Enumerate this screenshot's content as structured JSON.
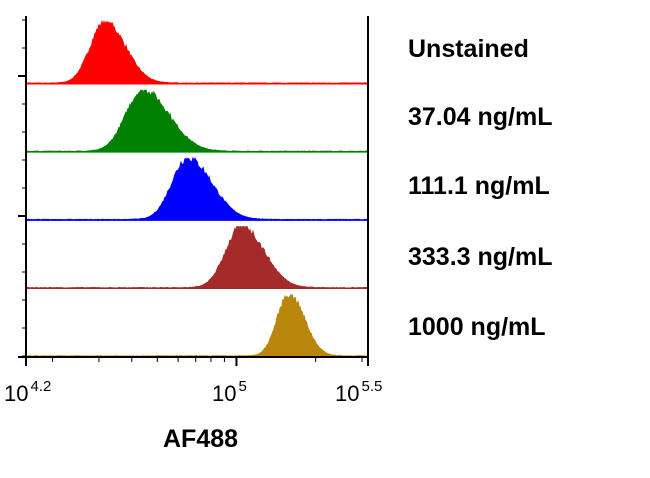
{
  "chart_data": {
    "type": "area",
    "title": "",
    "xlabel": "AF488",
    "ylabel": "",
    "xscale": "log10",
    "xlim_log10": [
      4.2,
      5.5
    ],
    "xticks": [
      {
        "base": "10",
        "exp": "4.2"
      },
      {
        "base": "10",
        "exp": "5"
      },
      {
        "base": "10",
        "exp": "5.5"
      }
    ],
    "series": [
      {
        "name": "Unstained",
        "color": "#ff0000",
        "peak_log10": 4.5,
        "spread_log10": 0.055,
        "skew": 1.4
      },
      {
        "name": "37.04 ng/mL",
        "color": "#008000",
        "peak_log10": 4.645,
        "spread_log10": 0.065,
        "skew": 1.5
      },
      {
        "name": "111.1 ng/mL",
        "color": "#0000ff",
        "peak_log10": 4.815,
        "spread_log10": 0.06,
        "skew": 1.5
      },
      {
        "name": "333.3 ng/mL",
        "color": "#a52a2a",
        "peak_log10": 5.02,
        "spread_log10": 0.06,
        "skew": 1.4
      },
      {
        "name": "1000 ng/mL",
        "color": "#b8860b",
        "peak_log10": 5.2,
        "spread_log10": 0.045,
        "skew": 1.3
      }
    ]
  }
}
